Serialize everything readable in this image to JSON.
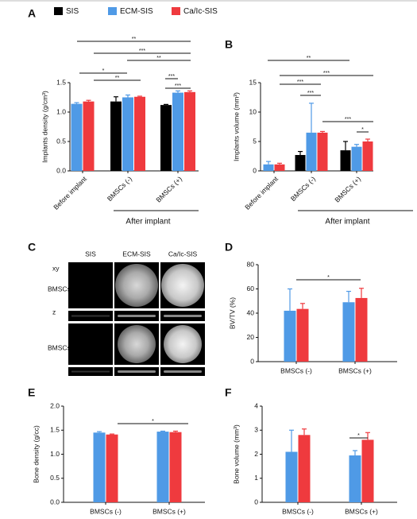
{
  "chart_data": [
    {
      "type": "bar",
      "panel": "A",
      "y_label": "Implants density (g/cm³)",
      "group_label": "After implant",
      "categories": [
        "Before implant",
        "BMSCs (-)",
        "BMSCs (+)"
      ],
      "series": [
        {
          "name": "SIS",
          "color": "#000000",
          "values": [
            null,
            1.18,
            1.12
          ],
          "errors": [
            null,
            0.08,
            0.01
          ]
        },
        {
          "name": "ECM-SIS",
          "color": "#4f9ae6",
          "values": [
            1.14,
            1.25,
            1.33
          ],
          "errors": [
            0.02,
            0.04,
            0.03
          ]
        },
        {
          "name": "Ca/Ic-SIS",
          "color": "#ef3a3e",
          "values": [
            1.18,
            1.26,
            1.34
          ],
          "errors": [
            0.02,
            0.01,
            0.02
          ]
        }
      ],
      "ylim": [
        0,
        1.5
      ],
      "yticks": [
        {
          "value": 0,
          "label": "0.0"
        },
        0.5,
        {
          "value": 1,
          "label": "1.0"
        },
        1.5
      ],
      "annotations": [
        "**",
        "***",
        "**",
        "*",
        "**",
        "***",
        "***"
      ]
    },
    {
      "type": "bar",
      "panel": "B",
      "y_label": "Implants volume (mm³)",
      "group_label": "After implant",
      "categories": [
        "Before implant",
        "BMSCs (-)",
        "BMSCs (+)"
      ],
      "series": [
        {
          "name": "SIS",
          "color": "#000000",
          "values": [
            null,
            2.7,
            3.5
          ],
          "errors": [
            null,
            0.6,
            1.5
          ]
        },
        {
          "name": "ECM-SIS",
          "color": "#4f9ae6",
          "values": [
            1.1,
            6.5,
            4.1
          ],
          "errors": [
            0.5,
            5.0,
            0.4
          ]
        },
        {
          "name": "Ca/Ic-SIS",
          "color": "#ef3a3e",
          "values": [
            1.1,
            6.5,
            5.0
          ],
          "errors": [
            0.2,
            0.2,
            0.4
          ]
        }
      ],
      "ylim": [
        0,
        15
      ],
      "yticks": [
        0,
        5,
        10,
        15
      ],
      "annotations": [
        "**",
        "***",
        "***",
        "***",
        "***",
        "*"
      ]
    },
    {
      "type": "bar",
      "panel": "D",
      "y_label": "BV/TV (%)",
      "categories": [
        "BMSCs (-)",
        "BMSCs (+)"
      ],
      "series": [
        {
          "name": "ECM-SIS",
          "color": "#4f9ae6",
          "values": [
            42,
            49
          ],
          "errors": [
            18,
            9
          ]
        },
        {
          "name": "Ca/Ic-SIS",
          "color": "#ef3a3e",
          "values": [
            43.5,
            52.5
          ],
          "errors": [
            4.5,
            8
          ]
        }
      ],
      "ylim": [
        0,
        80
      ],
      "yticks": [
        0,
        20,
        40,
        60,
        80
      ],
      "annotations": [
        "*"
      ]
    },
    {
      "type": "bar",
      "panel": "E",
      "y_label": "Bone density (g/cc)",
      "categories": [
        "BMSCs (-)",
        "BMSCs (+)"
      ],
      "series": [
        {
          "name": "ECM-SIS",
          "color": "#4f9ae6",
          "values": [
            1.45,
            1.47
          ],
          "errors": [
            0.02,
            0.01
          ]
        },
        {
          "name": "Ca/Ic-SIS",
          "color": "#ef3a3e",
          "values": [
            1.41,
            1.46
          ],
          "errors": [
            0.01,
            0.02
          ]
        }
      ],
      "ylim": [
        0,
        2
      ],
      "yticks": [
        {
          "value": 0,
          "label": "0.0"
        },
        0.5,
        {
          "value": 1,
          "label": "1.0"
        },
        1.5,
        {
          "value": 2,
          "label": "2.0"
        }
      ],
      "annotations": [
        "*"
      ]
    },
    {
      "type": "bar",
      "panel": "F",
      "y_label": "Bone volume (mm³)",
      "categories": [
        "BMSCs (-)",
        "BMSCs (+)"
      ],
      "series": [
        {
          "name": "ECM-SIS",
          "color": "#4f9ae6",
          "values": [
            2.1,
            1.95
          ],
          "errors": [
            0.9,
            0.2
          ]
        },
        {
          "name": "Ca/Ic-SIS",
          "color": "#ef3a3e",
          "values": [
            2.8,
            2.6
          ],
          "errors": [
            0.25,
            0.3
          ]
        }
      ],
      "ylim": [
        0,
        4
      ],
      "yticks": [
        0,
        1,
        2,
        3,
        4
      ],
      "annotations": [
        "*"
      ]
    }
  ],
  "image_panel": {
    "panel": "C",
    "columns": [
      "SIS",
      "ECM-SIS",
      "Ca/Ic-SIS"
    ],
    "views": [
      "xy",
      "z"
    ],
    "rows": [
      "BMSCs (-)",
      "BMSCs (+)"
    ]
  }
}
